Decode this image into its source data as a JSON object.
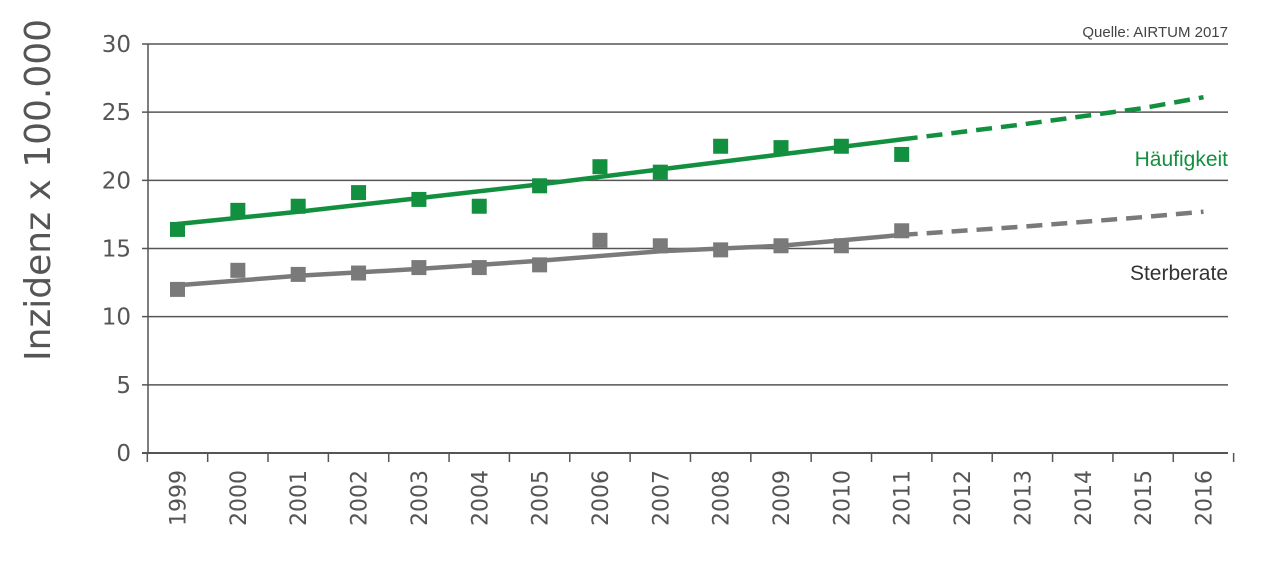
{
  "chart_data": {
    "type": "scatter",
    "source": "Quelle: AIRTUM 2017",
    "ylabel": "Inzidenz x 100.000",
    "xlabel": "",
    "ylim": [
      0,
      30
    ],
    "yticks": [
      "0",
      "5",
      "10",
      "15",
      "20",
      "25",
      "30"
    ],
    "categories": [
      "1999",
      "2000",
      "2001",
      "2002",
      "2003",
      "2004",
      "2005",
      "2006",
      "2007",
      "2008",
      "2009",
      "2010",
      "2011",
      "2012",
      "2013",
      "2014",
      "2015",
      "2016"
    ],
    "grid": "horizontal",
    "series": [
      {
        "name": "Häufigkeit",
        "color": "#12903f",
        "points": [
          16.4,
          17.8,
          18.1,
          19.1,
          18.6,
          18.1,
          19.6,
          21.0,
          20.6,
          22.5,
          22.4,
          22.5,
          21.9
        ],
        "trend": [
          [
            1999,
            16.8
          ],
          [
            2001,
            17.7
          ],
          [
            2003,
            18.7
          ],
          [
            2005,
            19.7
          ],
          [
            2007,
            20.8
          ],
          [
            2009,
            21.9
          ],
          [
            2011,
            23.0
          ]
        ],
        "forecast": [
          [
            2011,
            23.0
          ],
          [
            2013,
            24.1
          ],
          [
            2015,
            25.3
          ],
          [
            2016,
            26.1
          ]
        ]
      },
      {
        "name": "Sterberate",
        "color": "#7a7a7a",
        "points": [
          12.0,
          13.4,
          13.1,
          13.2,
          13.6,
          13.6,
          13.8,
          15.6,
          15.2,
          14.9,
          15.2,
          15.2,
          16.3
        ],
        "trend": [
          [
            1999,
            12.3
          ],
          [
            2001,
            13.0
          ],
          [
            2003,
            13.5
          ],
          [
            2005,
            14.1
          ],
          [
            2007,
            14.8
          ],
          [
            2009,
            15.2
          ],
          [
            2011,
            16.0
          ]
        ],
        "forecast": [
          [
            2011,
            16.0
          ],
          [
            2013,
            16.6
          ],
          [
            2015,
            17.3
          ],
          [
            2016,
            17.7
          ]
        ]
      }
    ]
  }
}
